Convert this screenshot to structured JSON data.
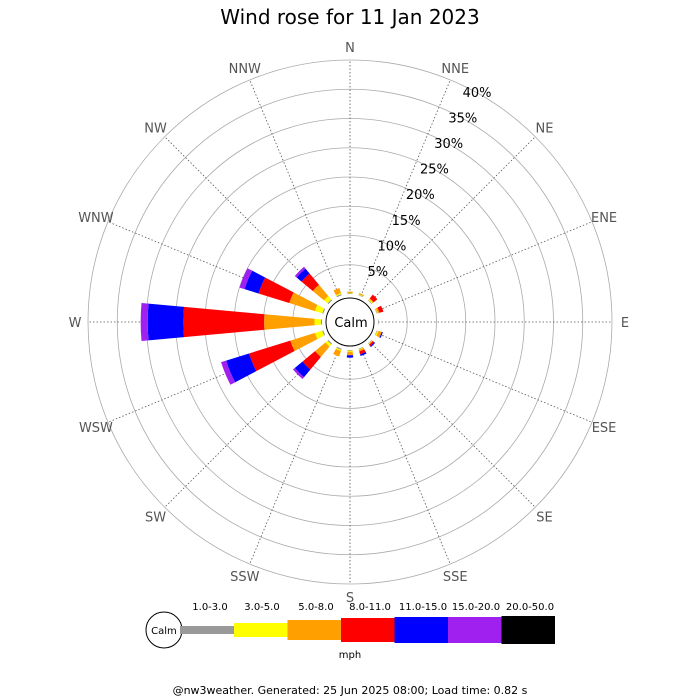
{
  "chart_data": {
    "type": "wind-rose",
    "title": "Wind rose for 11 Jan 2023",
    "directions": [
      "N",
      "NNE",
      "NE",
      "ENE",
      "E",
      "ESE",
      "SE",
      "SSE",
      "S",
      "SSW",
      "SW",
      "WSW",
      "W",
      "WNW",
      "NW",
      "NNW"
    ],
    "radial_ticks": [
      "5%",
      "10%",
      "15%",
      "20%",
      "25%",
      "30%",
      "35%",
      "40%"
    ],
    "radial_max": 40,
    "calm_label": "Calm",
    "unit": "mph",
    "speed_bins": [
      {
        "label": "1.0-3.0",
        "color": "#999999"
      },
      {
        "label": "3.0-5.0",
        "color": "#ffff00"
      },
      {
        "label": "5.0-8.0",
        "color": "#ffa000"
      },
      {
        "label": "8.0-11.0",
        "color": "#ff0000"
      },
      {
        "label": "11.0-15.0",
        "color": "#0000ff"
      },
      {
        "label": "15.0-20.0",
        "color": "#a020f0"
      },
      {
        "label": "20.0-50.0",
        "color": "#000000"
      }
    ],
    "series": [
      {
        "direction": "N",
        "values": [
          0.1,
          0.1,
          0.2,
          0.0,
          0.0,
          0.0,
          0.0
        ]
      },
      {
        "direction": "NNE",
        "values": [
          0.1,
          0.1,
          0.2,
          0.0,
          0.0,
          0.0,
          0.0
        ]
      },
      {
        "direction": "NE",
        "values": [
          0.1,
          0.2,
          0.2,
          0.8,
          0.0,
          0.0,
          0.0
        ]
      },
      {
        "direction": "ENE",
        "values": [
          0.1,
          0.1,
          0.3,
          0.7,
          0.0,
          0.0,
          0.0
        ]
      },
      {
        "direction": "E",
        "values": [
          0.1,
          0.0,
          0.0,
          0.0,
          0.0,
          0.0,
          0.0
        ]
      },
      {
        "direction": "ESE",
        "values": [
          0.1,
          0.2,
          0.6,
          0.0,
          0.2,
          0.0,
          0.0
        ]
      },
      {
        "direction": "SE",
        "values": [
          0.1,
          0.1,
          0.1,
          0.3,
          0.2,
          0.0,
          0.0
        ]
      },
      {
        "direction": "SSE",
        "values": [
          0.1,
          0.1,
          0.3,
          0.5,
          0.3,
          0.0,
          0.0
        ]
      },
      {
        "direction": "S",
        "values": [
          0.1,
          0.2,
          0.6,
          0.0,
          0.4,
          0.0,
          0.0
        ]
      },
      {
        "direction": "SSW",
        "values": [
          0.2,
          0.2,
          1.0,
          0.0,
          0.0,
          0.0,
          0.0
        ]
      },
      {
        "direction": "SW",
        "values": [
          0.2,
          0.5,
          2.3,
          2.8,
          1.7,
          0.4,
          0.0
        ]
      },
      {
        "direction": "WSW",
        "values": [
          0.2,
          1.3,
          4.4,
          7.4,
          4.1,
          0.9,
          0.0
        ]
      },
      {
        "direction": "W",
        "values": [
          0.2,
          1.1,
          8.6,
          13.8,
          6.1,
          1.2,
          0.0
        ]
      },
      {
        "direction": "WNW",
        "values": [
          0.2,
          1.3,
          4.6,
          5.5,
          2.5,
          0.9,
          0.0
        ]
      },
      {
        "direction": "NW",
        "values": [
          0.2,
          0.8,
          2.5,
          2.5,
          1.1,
          0.4,
          0.0
        ]
      },
      {
        "direction": "NNW",
        "values": [
          0.2,
          0.2,
          0.9,
          0.0,
          0.0,
          0.0,
          0.0
        ]
      }
    ]
  },
  "footer": "@nw3weather. Generated: 25 Jun 2025 08:00; Load time: 0.82 s"
}
